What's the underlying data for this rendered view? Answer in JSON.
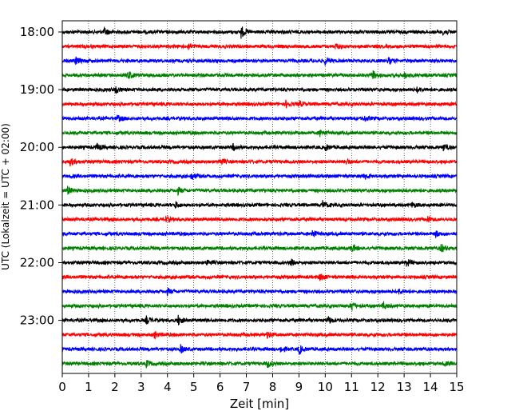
{
  "chart_data": {
    "type": "line",
    "subtype": "helicorder-seismogram",
    "title": "",
    "xlabel": "Zeit  [min]",
    "ylabel": "UTC (Lokalzeit = UTC + 02:00)",
    "xlim": [
      0,
      15
    ],
    "x_ticks": [
      0,
      1,
      2,
      3,
      4,
      5,
      6,
      7,
      8,
      9,
      10,
      11,
      12,
      13,
      14,
      15
    ],
    "x_tick_labels": [
      "0",
      "1",
      "2",
      "3",
      "4",
      "5",
      "6",
      "7",
      "8",
      "9",
      "10",
      "11",
      "12",
      "13",
      "14",
      "15"
    ],
    "y_tick_labels": [
      "18:00",
      "19:00",
      "20:00",
      "21:00",
      "22:00",
      "23:00"
    ],
    "vertical_grid": true,
    "grid_style": "dotted",
    "trace_interval_minutes": 15,
    "traces_per_hour": 4,
    "trace_color_cycle": [
      "#000000",
      "#ff0000",
      "#0000ff",
      "#008000"
    ],
    "traces": [
      {
        "start": "18:00",
        "color": "#000000",
        "events": [
          {
            "t": 1.6,
            "amp": 0.6
          },
          {
            "t": 6.8,
            "amp": 1.0
          },
          {
            "t": 14.5,
            "amp": 0.5
          }
        ]
      },
      {
        "start": "18:15",
        "color": "#ff0000",
        "events": [
          {
            "t": 4.8,
            "amp": 0.5
          },
          {
            "t": 10.4,
            "amp": 0.4
          }
        ]
      },
      {
        "start": "18:30",
        "color": "#0000ff",
        "events": [
          {
            "t": 0.5,
            "amp": 0.6
          },
          {
            "t": 10.0,
            "amp": 0.6
          },
          {
            "t": 12.4,
            "amp": 0.5
          }
        ]
      },
      {
        "start": "18:45",
        "color": "#008000",
        "events": [
          {
            "t": 2.5,
            "amp": 0.7
          },
          {
            "t": 11.8,
            "amp": 0.8
          },
          {
            "t": 13.0,
            "amp": 0.5
          }
        ]
      },
      {
        "start": "19:00",
        "color": "#000000",
        "events": [
          {
            "t": 2.0,
            "amp": 0.7
          },
          {
            "t": 13.5,
            "amp": 0.4
          }
        ]
      },
      {
        "start": "19:15",
        "color": "#ff0000",
        "events": [
          {
            "t": 8.5,
            "amp": 0.5
          },
          {
            "t": 9.0,
            "amp": 0.5
          }
        ]
      },
      {
        "start": "19:30",
        "color": "#0000ff",
        "events": [
          {
            "t": 2.1,
            "amp": 0.5
          },
          {
            "t": 11.5,
            "amp": 0.4
          }
        ]
      },
      {
        "start": "19:45",
        "color": "#008000",
        "events": [
          {
            "t": 9.8,
            "amp": 0.5
          }
        ]
      },
      {
        "start": "20:00",
        "color": "#000000",
        "events": [
          {
            "t": 1.3,
            "amp": 0.6
          },
          {
            "t": 6.5,
            "amp": 0.5
          },
          {
            "t": 10.0,
            "amp": 0.5
          },
          {
            "t": 14.5,
            "amp": 0.6
          }
        ]
      },
      {
        "start": "20:15",
        "color": "#ff0000",
        "events": [
          {
            "t": 0.3,
            "amp": 0.6
          },
          {
            "t": 6.0,
            "amp": 0.5
          },
          {
            "t": 10.8,
            "amp": 0.4
          }
        ]
      },
      {
        "start": "20:30",
        "color": "#0000ff",
        "events": [
          {
            "t": 4.9,
            "amp": 0.6
          },
          {
            "t": 11.5,
            "amp": 0.4
          }
        ]
      },
      {
        "start": "20:45",
        "color": "#008000",
        "events": [
          {
            "t": 0.2,
            "amp": 0.6
          },
          {
            "t": 4.4,
            "amp": 0.5
          }
        ]
      },
      {
        "start": "21:00",
        "color": "#000000",
        "events": [
          {
            "t": 4.3,
            "amp": 0.5
          },
          {
            "t": 9.9,
            "amp": 0.6
          },
          {
            "t": 13.3,
            "amp": 0.4
          }
        ]
      },
      {
        "start": "21:15",
        "color": "#ff0000",
        "events": [
          {
            "t": 3.9,
            "amp": 0.5
          },
          {
            "t": 13.9,
            "amp": 0.5
          }
        ]
      },
      {
        "start": "21:30",
        "color": "#0000ff",
        "events": [
          {
            "t": 9.5,
            "amp": 0.7
          },
          {
            "t": 14.2,
            "amp": 0.5
          }
        ]
      },
      {
        "start": "21:45",
        "color": "#008000",
        "events": [
          {
            "t": 11.0,
            "amp": 0.7
          },
          {
            "t": 14.4,
            "amp": 0.7
          }
        ]
      },
      {
        "start": "22:00",
        "color": "#000000",
        "events": [
          {
            "t": 5.5,
            "amp": 0.5
          },
          {
            "t": 8.7,
            "amp": 0.5
          },
          {
            "t": 13.1,
            "amp": 0.6
          }
        ]
      },
      {
        "start": "22:15",
        "color": "#ff0000",
        "events": [
          {
            "t": 9.8,
            "amp": 0.6
          }
        ]
      },
      {
        "start": "22:30",
        "color": "#0000ff",
        "events": [
          {
            "t": 4.0,
            "amp": 0.5
          },
          {
            "t": 12.8,
            "amp": 0.4
          }
        ]
      },
      {
        "start": "22:45",
        "color": "#008000",
        "events": [
          {
            "t": 11.0,
            "amp": 0.8
          },
          {
            "t": 12.2,
            "amp": 0.5
          }
        ]
      },
      {
        "start": "23:00",
        "color": "#000000",
        "events": [
          {
            "t": 3.2,
            "amp": 0.6
          },
          {
            "t": 4.4,
            "amp": 0.8
          },
          {
            "t": 10.1,
            "amp": 0.6
          }
        ]
      },
      {
        "start": "23:15",
        "color": "#ff0000",
        "events": [
          {
            "t": 3.5,
            "amp": 0.5
          },
          {
            "t": 7.8,
            "amp": 0.5
          }
        ]
      },
      {
        "start": "23:30",
        "color": "#0000ff",
        "events": [
          {
            "t": 4.5,
            "amp": 0.6
          },
          {
            "t": 9.0,
            "amp": 0.7
          },
          {
            "t": 8.3,
            "amp": 0.5
          }
        ]
      },
      {
        "start": "23:45",
        "color": "#008000",
        "events": [
          {
            "t": 3.2,
            "amp": 0.5
          },
          {
            "t": 7.8,
            "amp": 0.6
          },
          {
            "t": 14.5,
            "amp": 0.3
          }
        ]
      }
    ]
  }
}
